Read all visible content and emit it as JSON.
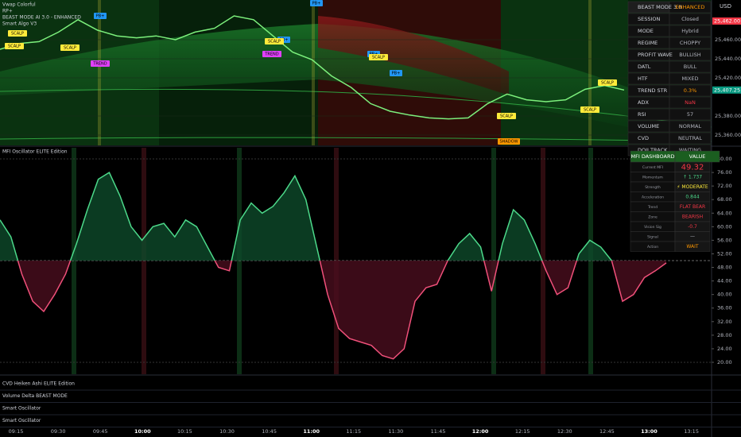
{
  "indicators": [
    "Vwap Colorful",
    "RP+",
    "BEAST MODE AI 3.0 - ENHANCED",
    "Smart Algo V3"
  ],
  "currency": "USD",
  "price_axis": {
    "ticks": [
      {
        "value": 25460,
        "label": "25,460.00"
      },
      {
        "value": 25440,
        "label": "25,440.00"
      },
      {
        "value": 25420,
        "label": "25,420.00"
      },
      {
        "value": 25380,
        "label": "25,380.00"
      },
      {
        "value": 25360,
        "label": "25,360.00"
      }
    ],
    "high_tag": "25,462.00",
    "last_tag": "25,407.25",
    "last_value": 25407.25
  },
  "price": {
    "values": [
      25450,
      25456,
      25458,
      25468,
      25481,
      25470,
      25464,
      25462,
      25464,
      25460,
      25468,
      25472,
      25485,
      25481,
      25464,
      25447,
      25439,
      25422,
      25410,
      25393,
      25385,
      25381,
      25378,
      25377,
      25378,
      25393,
      25403,
      25397,
      25395,
      25397,
      25408,
      25412,
      25407.25
    ]
  },
  "signals": [
    "SCALP",
    "SCALP",
    "TREND",
    "PB+",
    "SCALP",
    "TREND",
    "PB+",
    "SCALP",
    "PB+",
    "PB+",
    "SCALP",
    "PB+",
    "SCALP",
    "SCALP",
    "SHADOW",
    "SCALP"
  ],
  "beast_table": [
    [
      "BEAST MODE 3.0",
      "ENHANCED"
    ],
    [
      "SESSION",
      "Closed"
    ],
    [
      "MODE",
      "Hybrid"
    ],
    [
      "REGIME",
      "CHOPPY"
    ],
    [
      "PROFIT WAVE",
      "BULLISH"
    ],
    [
      "DATL",
      "BULL"
    ],
    [
      "HTF",
      "MIXED"
    ],
    [
      "TREND STR",
      "0.3%"
    ],
    [
      "ADX",
      "NaN"
    ],
    [
      "RSI",
      "57"
    ],
    [
      "VOLUME",
      "NORMAL"
    ],
    [
      "CVD",
      "NEUTRAL"
    ],
    [
      "DOJI TRACK",
      "WAITING"
    ]
  ],
  "mfi": {
    "title": "MFI Oscillator ELITE Edition",
    "ylim": [
      20,
      80
    ],
    "yticks": [
      {
        "value": 80,
        "label": "80.00"
      },
      {
        "value": 76,
        "label": "76.00"
      },
      {
        "value": 72,
        "label": "72.00"
      },
      {
        "value": 68,
        "label": "68.00"
      },
      {
        "value": 64,
        "label": "64.00"
      },
      {
        "value": 60,
        "label": "60.00"
      },
      {
        "value": 56,
        "label": "56.00"
      },
      {
        "value": 52,
        "label": "52.00"
      },
      {
        "value": 48,
        "label": "48.00"
      },
      {
        "value": 44,
        "label": "44.00"
      },
      {
        "value": 40,
        "label": "40.00"
      },
      {
        "value": 36,
        "label": "36.00"
      },
      {
        "value": 32,
        "label": "32.00"
      },
      {
        "value": 28,
        "label": "28.00"
      },
      {
        "value": 24,
        "label": "24.00"
      },
      {
        "value": 20,
        "label": "20.00"
      }
    ],
    "midline": 50,
    "values": [
      62,
      57,
      46,
      38,
      35,
      40,
      46,
      55,
      65,
      74,
      76,
      69,
      60,
      56,
      60,
      61,
      57,
      62,
      60,
      54,
      48,
      47,
      62,
      67,
      64,
      66,
      70,
      75,
      68,
      54,
      40,
      30,
      27,
      26,
      25,
      22,
      21,
      24,
      38,
      42,
      43,
      50,
      55,
      58,
      54,
      41,
      55,
      65,
      62,
      55,
      47,
      40,
      42,
      52,
      56,
      54,
      50,
      38,
      40,
      45,
      47,
      49.32
    ]
  },
  "mfi_table": {
    "header": [
      "MFI DASHBOARD",
      "VALUE"
    ],
    "rows": [
      [
        "Current MFI",
        "49.32"
      ],
      [
        "Momentum",
        "↑ 1.737"
      ],
      [
        "Strength",
        "⚡ MODERATE"
      ],
      [
        "Acceleration",
        "0.844"
      ],
      [
        "Trend",
        "FLAT BEAR"
      ],
      [
        "Zone",
        "BEARISH"
      ],
      [
        "Vision Sig",
        "-0.7"
      ],
      [
        "Signal",
        "—"
      ],
      [
        "Action",
        "WAIT"
      ]
    ]
  },
  "panes": [
    "CVD Heiken Ashi ELITE Edition",
    "Volume Delta BEAST MODE",
    "Smart Oscillator",
    "Smart Oscillator"
  ],
  "time_axis": [
    "09:15",
    "09:30",
    "09:45",
    "10:00",
    "10:15",
    "10:30",
    "10:45",
    "11:00",
    "11:15",
    "11:30",
    "11:45",
    "12:00",
    "12:15",
    "12:30",
    "12:45",
    "13:00",
    "13:15"
  ]
}
